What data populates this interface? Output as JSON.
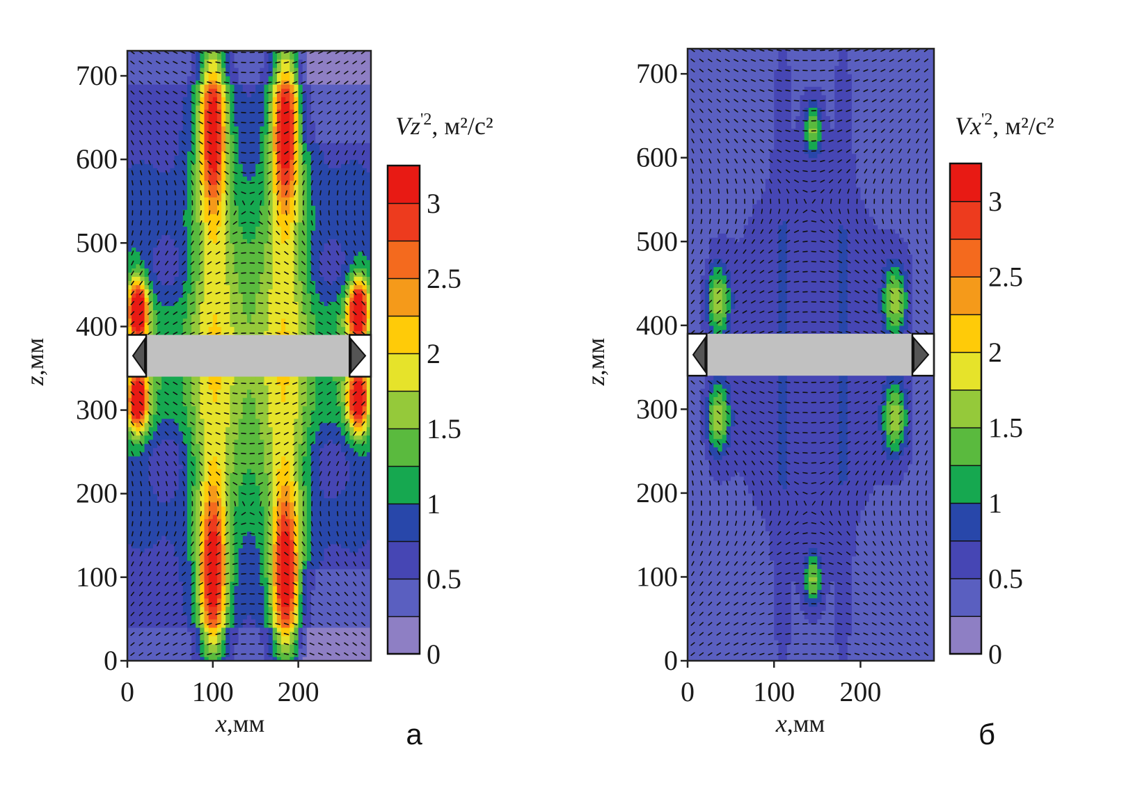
{
  "chart_data": [
    {
      "type": "heatmap",
      "panel_label": "а",
      "colorbar_label": "Vz'², м²/с²",
      "colorbar_var": "Vz",
      "colorbar_unit": "м²/с²",
      "xlabel": "x,мм",
      "xlabel_var": "x",
      "xlabel_unit": ",мм",
      "ylabel": "z,мм",
      "ylabel_var": "z",
      "ylabel_unit": ",мм",
      "xlim": [
        0,
        285
      ],
      "ylim": [
        0,
        730
      ],
      "xticks": [
        "0",
        "100",
        "200"
      ],
      "yticks": [
        "0",
        "100",
        "200",
        "300",
        "400",
        "500",
        "600",
        "700"
      ],
      "colorbar_ticks": [
        "0",
        "0.5",
        "1",
        "1.5",
        "2",
        "2.5",
        "3"
      ],
      "clim": [
        0,
        3.25
      ],
      "levels": [
        0,
        0.25,
        0.5,
        0.75,
        1,
        1.25,
        1.5,
        1.75,
        2,
        2.25,
        2.5,
        2.75,
        3,
        3.25
      ],
      "colors": [
        "#8e7fc4",
        "#5a5fc0",
        "#4646b4",
        "#2847aa",
        "#16a850",
        "#5aba3e",
        "#95c93a",
        "#e6e32a",
        "#ffcb08",
        "#f59a1a",
        "#f46a1e",
        "#ed3b1e",
        "#e81a14"
      ],
      "obstacle_z": [
        340,
        390
      ],
      "peaks": [
        {
          "x": 100,
          "z": 640,
          "value": 2.8
        },
        {
          "x": 185,
          "z": 640,
          "value": 2.8
        },
        {
          "x": 100,
          "z": 90,
          "value": 2.8
        },
        {
          "x": 185,
          "z": 90,
          "value": 2.8
        },
        {
          "x": 12,
          "z": 415,
          "value": 3.1
        },
        {
          "x": 270,
          "z": 415,
          "value": 3.1
        },
        {
          "x": 12,
          "z": 315,
          "value": 3.0
        },
        {
          "x": 270,
          "z": 315,
          "value": 3.0
        }
      ]
    },
    {
      "type": "heatmap",
      "panel_label": "б",
      "colorbar_label": "Vx'², м²/с²",
      "colorbar_var": "Vx",
      "colorbar_unit": "м²/с²",
      "xlabel": "x,мм",
      "xlabel_var": "x",
      "xlabel_unit": ",мм",
      "ylabel": "z,мм",
      "ylabel_var": "z",
      "ylabel_unit": ",мм",
      "xlim": [
        0,
        285
      ],
      "ylim": [
        0,
        730
      ],
      "xticks": [
        "0",
        "100",
        "200"
      ],
      "yticks": [
        "0",
        "100",
        "200",
        "300",
        "400",
        "500",
        "600",
        "700"
      ],
      "colorbar_ticks": [
        "0",
        "0.5",
        "1",
        "1.5",
        "2",
        "2.5",
        "3"
      ],
      "clim": [
        0,
        3.25
      ],
      "levels": [
        0,
        0.25,
        0.5,
        0.75,
        1,
        1.25,
        1.5,
        1.75,
        2,
        2.25,
        2.5,
        2.75,
        3,
        3.25
      ],
      "colors": [
        "#8e7fc4",
        "#5a5fc0",
        "#4646b4",
        "#2847aa",
        "#16a850",
        "#5aba3e",
        "#95c93a",
        "#e6e32a",
        "#ffcb08",
        "#f59a1a",
        "#f46a1e",
        "#ed3b1e",
        "#e81a14"
      ],
      "obstacle_z": [
        340,
        390
      ],
      "peaks": [
        {
          "x": 145,
          "z": 640,
          "value": 1.4
        },
        {
          "x": 145,
          "z": 100,
          "value": 1.4
        },
        {
          "x": 35,
          "z": 430,
          "value": 1.5
        },
        {
          "x": 240,
          "z": 430,
          "value": 1.5
        },
        {
          "x": 35,
          "z": 290,
          "value": 1.5
        },
        {
          "x": 240,
          "z": 290,
          "value": 1.5
        }
      ]
    }
  ]
}
